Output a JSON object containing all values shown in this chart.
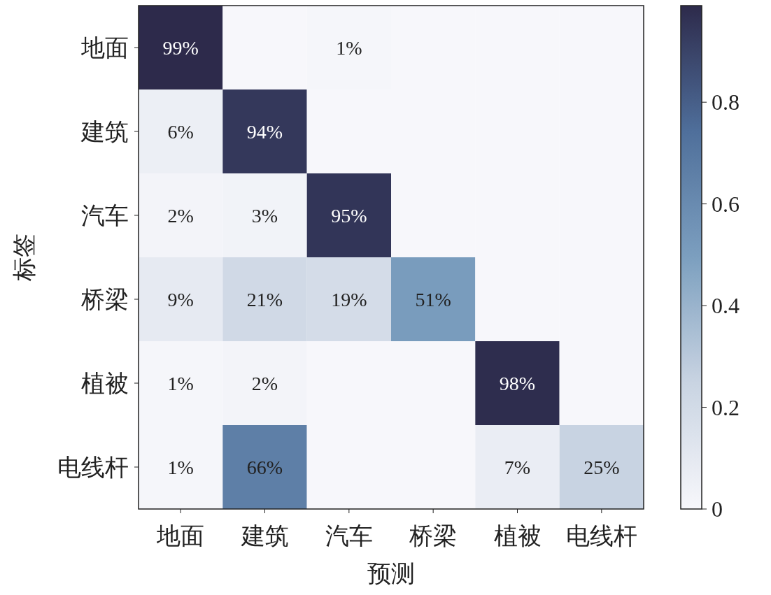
{
  "chart_data": {
    "type": "heatmap",
    "xlabel": "预测",
    "ylabel": "标签",
    "categories": [
      "地面",
      "建筑",
      "汽车",
      "桥梁",
      "植被",
      "电线杆"
    ],
    "y_categories": [
      "地面",
      "建筑",
      "汽车",
      "桥梁",
      "植被",
      "电线杆"
    ],
    "cells": [
      [
        0.99,
        0,
        0.01,
        0,
        0,
        0
      ],
      [
        0.06,
        0.94,
        0,
        0,
        0,
        0
      ],
      [
        0.02,
        0.03,
        0.95,
        0,
        0,
        0
      ],
      [
        0.09,
        0.21,
        0.19,
        0.51,
        0,
        0
      ],
      [
        0.01,
        0.02,
        0,
        0,
        0.98,
        0
      ],
      [
        0.01,
        0.66,
        0,
        0,
        0.07,
        0.25
      ]
    ],
    "cell_labels": [
      [
        "99%",
        null,
        "1%",
        null,
        null,
        null
      ],
      [
        "6%",
        "94%",
        null,
        null,
        null,
        null
      ],
      [
        "2%",
        "3%",
        "95%",
        null,
        null,
        null
      ],
      [
        "9%",
        "21%",
        "19%",
        "51%",
        null,
        null
      ],
      [
        "1%",
        "2%",
        null,
        null,
        "98%",
        null
      ],
      [
        "1%",
        "66%",
        null,
        null,
        "7%",
        "25%"
      ]
    ],
    "clim": [
      0,
      0.99
    ],
    "cticks": [
      0,
      0.2,
      0.4,
      0.6,
      0.8
    ]
  }
}
